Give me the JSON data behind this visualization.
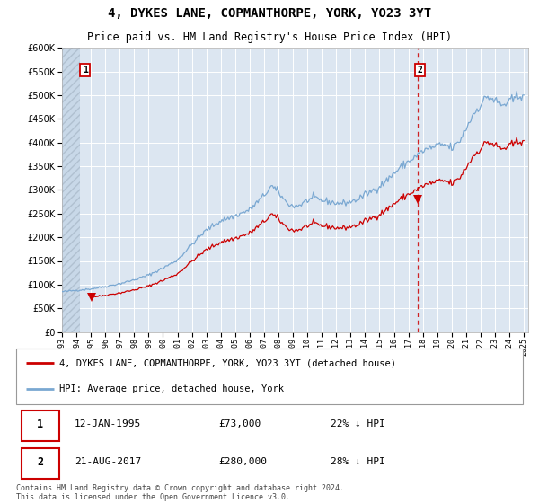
{
  "title": "4, DYKES LANE, COPMANTHORPE, YORK, YO23 3YT",
  "subtitle": "Price paid vs. HM Land Registry's House Price Index (HPI)",
  "legend_label_red": "4, DYKES LANE, COPMANTHORPE, YORK, YO23 3YT (detached house)",
  "legend_label_blue": "HPI: Average price, detached house, York",
  "footer": "Contains HM Land Registry data © Crown copyright and database right 2024.\nThis data is licensed under the Open Government Licence v3.0.",
  "annotation1_label": "1",
  "annotation1_date": "12-JAN-1995",
  "annotation1_price": "£73,000",
  "annotation1_hpi": "22% ↓ HPI",
  "annotation2_label": "2",
  "annotation2_date": "21-AUG-2017",
  "annotation2_price": "£280,000",
  "annotation2_hpi": "28% ↓ HPI",
  "sale1_date_num": 1995.04,
  "sale1_price": 73000,
  "sale2_date_num": 2017.64,
  "sale2_price": 280000,
  "ylim": [
    0,
    600000
  ],
  "yticks": [
    0,
    50000,
    100000,
    150000,
    200000,
    250000,
    300000,
    350000,
    400000,
    450000,
    500000,
    550000,
    600000
  ],
  "xlim_start": 1993.0,
  "xlim_end": 2025.3,
  "bg_color": "#dce6f1",
  "grid_color": "#ffffff",
  "red_color": "#cc0000",
  "blue_color": "#7aa8d2",
  "title_fontsize": 10,
  "subtitle_fontsize": 8.5,
  "axis_fontsize": 7,
  "legend_fontsize": 7.5,
  "footer_fontsize": 6.0,
  "hpi_anchors": [
    [
      1993.0,
      85000
    ],
    [
      1994.0,
      88000
    ],
    [
      1995.0,
      91000
    ],
    [
      1996.0,
      96000
    ],
    [
      1997.0,
      102000
    ],
    [
      1998.0,
      110000
    ],
    [
      1999.0,
      120000
    ],
    [
      2000.0,
      135000
    ],
    [
      2001.0,
      152000
    ],
    [
      2002.0,
      185000
    ],
    [
      2003.0,
      215000
    ],
    [
      2004.0,
      235000
    ],
    [
      2005.0,
      245000
    ],
    [
      2006.0,
      258000
    ],
    [
      2007.0,
      288000
    ],
    [
      2007.5,
      308000
    ],
    [
      2008.0,
      295000
    ],
    [
      2008.5,
      275000
    ],
    [
      2009.0,
      265000
    ],
    [
      2009.5,
      268000
    ],
    [
      2010.0,
      278000
    ],
    [
      2010.5,
      283000
    ],
    [
      2011.0,
      278000
    ],
    [
      2011.5,
      275000
    ],
    [
      2012.0,
      272000
    ],
    [
      2012.5,
      272000
    ],
    [
      2013.0,
      275000
    ],
    [
      2013.5,
      280000
    ],
    [
      2014.0,
      290000
    ],
    [
      2014.5,
      298000
    ],
    [
      2015.0,
      308000
    ],
    [
      2015.5,
      320000
    ],
    [
      2016.0,
      335000
    ],
    [
      2016.5,
      348000
    ],
    [
      2017.0,
      360000
    ],
    [
      2017.5,
      370000
    ],
    [
      2018.0,
      382000
    ],
    [
      2018.5,
      388000
    ],
    [
      2019.0,
      393000
    ],
    [
      2019.5,
      395000
    ],
    [
      2020.0,
      388000
    ],
    [
      2020.5,
      400000
    ],
    [
      2021.0,
      430000
    ],
    [
      2021.5,
      460000
    ],
    [
      2022.0,
      480000
    ],
    [
      2022.5,
      498000
    ],
    [
      2023.0,
      488000
    ],
    [
      2023.5,
      478000
    ],
    [
      2024.0,
      485000
    ],
    [
      2024.5,
      495000
    ],
    [
      2025.0,
      505000
    ]
  ]
}
